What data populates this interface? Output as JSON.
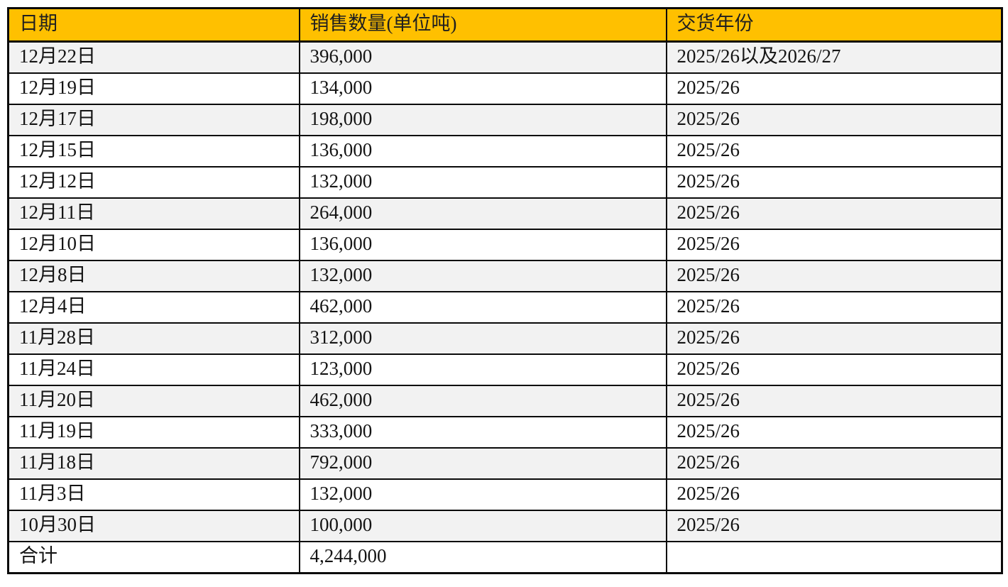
{
  "colors": {
    "header_background": "#FFC000",
    "shaded_row_background": "#F2F2F2",
    "plain_row_background": "#FFFFFF",
    "border": "#0A0A0A",
    "text": "#141414"
  },
  "table": {
    "headers": [
      "日期",
      "销售数量(单位吨)",
      "交货年份"
    ],
    "rows": [
      {
        "date": "12月22日",
        "quantity": "396,000",
        "year": "2025/26以及2026/27",
        "shaded": true,
        "is_total": false
      },
      {
        "date": "12月19日",
        "quantity": "134,000",
        "year": "2025/26",
        "shaded": false,
        "is_total": false
      },
      {
        "date": "12月17日",
        "quantity": "198,000",
        "year": "2025/26",
        "shaded": true,
        "is_total": false
      },
      {
        "date": "12月15日",
        "quantity": "136,000",
        "year": "2025/26",
        "shaded": false,
        "is_total": false
      },
      {
        "date": "12月12日",
        "quantity": "132,000",
        "year": "2025/26",
        "shaded": false,
        "is_total": false
      },
      {
        "date": "12月11日",
        "quantity": "264,000",
        "year": "2025/26",
        "shaded": true,
        "is_total": false
      },
      {
        "date": "12月10日",
        "quantity": "136,000",
        "year": "2025/26",
        "shaded": false,
        "is_total": false
      },
      {
        "date": "12月8日",
        "quantity": "132,000",
        "year": "2025/26",
        "shaded": true,
        "is_total": false
      },
      {
        "date": "12月4日",
        "quantity": "462,000",
        "year": "2025/26",
        "shaded": false,
        "is_total": false
      },
      {
        "date": "11月28日",
        "quantity": "312,000",
        "year": "2025/26",
        "shaded": true,
        "is_total": false
      },
      {
        "date": "11月24日",
        "quantity": "123,000",
        "year": "2025/26",
        "shaded": false,
        "is_total": false
      },
      {
        "date": "11月20日",
        "quantity": "462,000",
        "year": "2025/26",
        "shaded": true,
        "is_total": false
      },
      {
        "date": "11月19日",
        "quantity": "333,000",
        "year": "2025/26",
        "shaded": false,
        "is_total": false
      },
      {
        "date": "11月18日",
        "quantity": "792,000",
        "year": "2025/26",
        "shaded": true,
        "is_total": false
      },
      {
        "date": "11月3日",
        "quantity": "132,000",
        "year": "2025/26",
        "shaded": false,
        "is_total": false
      },
      {
        "date": "10月30日",
        "quantity": "100,000",
        "year": "2025/26",
        "shaded": true,
        "is_total": false
      },
      {
        "date": "合计",
        "quantity": "4,244,000",
        "year": "",
        "shaded": false,
        "is_total": true
      }
    ]
  }
}
